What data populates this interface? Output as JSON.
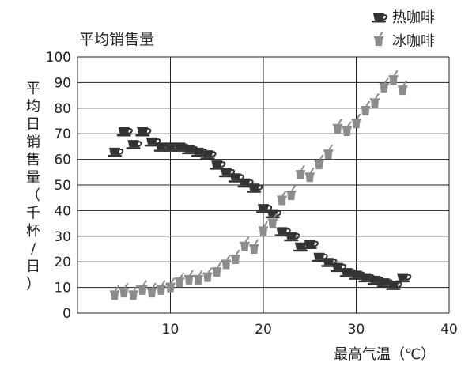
{
  "chart_data": {
    "type": "scatter",
    "title": "平均销售量",
    "ylabel": "平均日销售量（千杯/日）",
    "xlabel": "最高气温（℃）",
    "xlim": [
      0,
      40
    ],
    "ylim": [
      0,
      100
    ],
    "xticks": [
      10,
      20,
      30,
      40
    ],
    "yticks": [
      0,
      10,
      20,
      30,
      40,
      50,
      60,
      70,
      80,
      90,
      100
    ],
    "grid": true,
    "legend_position": "top-right",
    "series": [
      {
        "name": "热咖啡",
        "color": "#333333",
        "marker": "cup",
        "points": [
          {
            "x": 4.0,
            "y": 63
          },
          {
            "x": 5.0,
            "y": 71
          },
          {
            "x": 6.0,
            "y": 66
          },
          {
            "x": 7.0,
            "y": 71
          },
          {
            "x": 8.0,
            "y": 67
          },
          {
            "x": 9.0,
            "y": 65
          },
          {
            "x": 10.0,
            "y": 65
          },
          {
            "x": 11.0,
            "y": 65
          },
          {
            "x": 12.0,
            "y": 64
          },
          {
            "x": 13.0,
            "y": 63
          },
          {
            "x": 14.0,
            "y": 62
          },
          {
            "x": 15.0,
            "y": 58
          },
          {
            "x": 16.0,
            "y": 55
          },
          {
            "x": 17.0,
            "y": 53
          },
          {
            "x": 18.0,
            "y": 51
          },
          {
            "x": 19.0,
            "y": 49
          },
          {
            "x": 20.0,
            "y": 41
          },
          {
            "x": 21.0,
            "y": 39
          },
          {
            "x": 22.0,
            "y": 32
          },
          {
            "x": 23.0,
            "y": 30
          },
          {
            "x": 24.0,
            "y": 26
          },
          {
            "x": 25.0,
            "y": 27
          },
          {
            "x": 26.0,
            "y": 22
          },
          {
            "x": 27.0,
            "y": 20
          },
          {
            "x": 28.0,
            "y": 18
          },
          {
            "x": 29.0,
            "y": 16
          },
          {
            "x": 30.0,
            "y": 15
          },
          {
            "x": 31.0,
            "y": 14
          },
          {
            "x": 32.0,
            "y": 13
          },
          {
            "x": 33.0,
            "y": 12
          },
          {
            "x": 34.0,
            "y": 11
          },
          {
            "x": 35.0,
            "y": 14
          }
        ]
      },
      {
        "name": "冰咖啡",
        "color": "#8c8c8c",
        "marker": "iced-cup",
        "points": [
          {
            "x": 4.0,
            "y": 7
          },
          {
            "x": 5.0,
            "y": 8
          },
          {
            "x": 6.0,
            "y": 7
          },
          {
            "x": 7.0,
            "y": 9
          },
          {
            "x": 8.0,
            "y": 8
          },
          {
            "x": 9.0,
            "y": 9
          },
          {
            "x": 10.0,
            "y": 10
          },
          {
            "x": 11.0,
            "y": 12
          },
          {
            "x": 12.0,
            "y": 13
          },
          {
            "x": 13.0,
            "y": 13
          },
          {
            "x": 14.0,
            "y": 14
          },
          {
            "x": 15.0,
            "y": 16
          },
          {
            "x": 16.0,
            "y": 19
          },
          {
            "x": 17.0,
            "y": 21
          },
          {
            "x": 18.0,
            "y": 26
          },
          {
            "x": 19.0,
            "y": 25
          },
          {
            "x": 20.0,
            "y": 32
          },
          {
            "x": 21.0,
            "y": 35
          },
          {
            "x": 22.0,
            "y": 44
          },
          {
            "x": 23.0,
            "y": 46
          },
          {
            "x": 24.0,
            "y": 54
          },
          {
            "x": 25.0,
            "y": 53
          },
          {
            "x": 26.0,
            "y": 58
          },
          {
            "x": 27.0,
            "y": 62
          },
          {
            "x": 28.0,
            "y": 72
          },
          {
            "x": 29.0,
            "y": 71
          },
          {
            "x": 30.0,
            "y": 74
          },
          {
            "x": 31.0,
            "y": 79
          },
          {
            "x": 32.0,
            "y": 82
          },
          {
            "x": 33.0,
            "y": 88
          },
          {
            "x": 34.0,
            "y": 91
          },
          {
            "x": 35.0,
            "y": 87
          }
        ]
      }
    ]
  }
}
